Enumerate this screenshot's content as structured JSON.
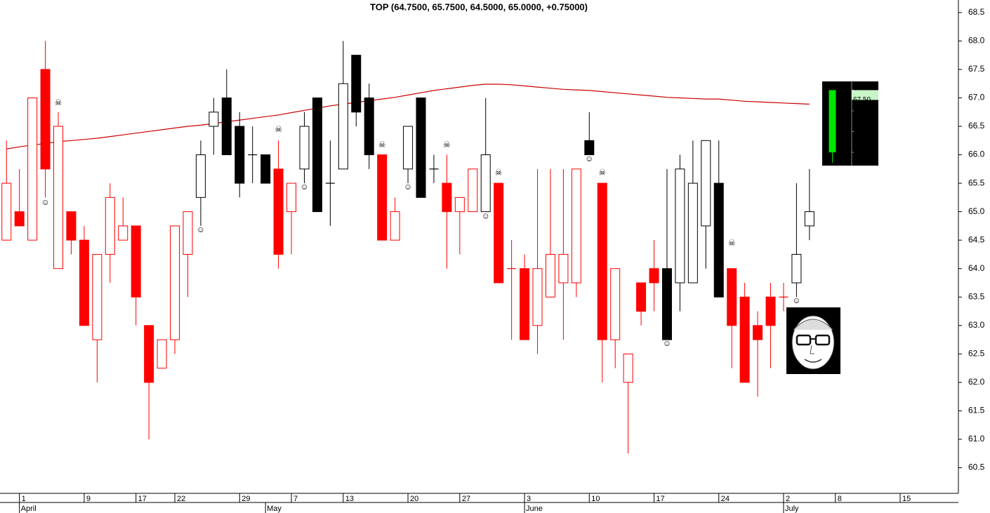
{
  "chart_data": {
    "type": "candlestick",
    "title": "TOP (64.7500, 65.7500, 64.5000, 65.0000, +0.75000)",
    "open": [
      64.5,
      65.0,
      64.5,
      67.5,
      64.0,
      65.0,
      64.5,
      62.75,
      64.25,
      64.5,
      64.75,
      63.0,
      62.25,
      62.75,
      64.25,
      65.25,
      66.5,
      67.0,
      66.5,
      66.0,
      66.0,
      65.75,
      65.0,
      65.75,
      67.0,
      65.5,
      65.75,
      67.75,
      67.0,
      66.0,
      64.5,
      65.75,
      67.0,
      65.75,
      65.5,
      65.0,
      65.0,
      65.0,
      65.5,
      64.0,
      64.0,
      63.0,
      63.5,
      63.75,
      63.75,
      66.25,
      65.5,
      62.75,
      62.0,
      63.75,
      64.0,
      64.0,
      63.75,
      63.75,
      64.75,
      65.5,
      64.0,
      63.5,
      63.0,
      63.5,
      63.5,
      63.75,
      64.75
    ],
    "high": [
      66.25,
      65.75,
      67.0,
      68.0,
      66.75,
      65.0,
      64.75,
      64.25,
      65.5,
      65.25,
      64.75,
      63.0,
      62.75,
      64.75,
      65.0,
      66.25,
      67.0,
      67.5,
      66.75,
      66.5,
      66.0,
      66.25,
      65.5,
      66.75,
      67.0,
      66.25,
      68.0,
      67.75,
      67.25,
      66.0,
      65.25,
      66.5,
      67.0,
      66.0,
      66.0,
      65.25,
      65.75,
      67.0,
      65.5,
      64.5,
      64.25,
      65.75,
      65.75,
      65.75,
      65.75,
      66.75,
      65.5,
      64.0,
      62.5,
      63.75,
      64.5,
      65.75,
      66.0,
      66.25,
      66.25,
      66.25,
      64.0,
      63.75,
      63.25,
      63.75,
      63.75,
      65.5,
      65.75
    ],
    "low": [
      64.5,
      64.75,
      64.5,
      65.25,
      64.0,
      64.25,
      63.0,
      62.0,
      63.75,
      64.5,
      63.0,
      61.0,
      62.25,
      62.5,
      63.5,
      64.75,
      66.0,
      66.0,
      65.25,
      65.5,
      65.5,
      64.0,
      64.25,
      65.5,
      65.0,
      64.75,
      65.75,
      66.5,
      65.75,
      64.5,
      64.5,
      65.5,
      65.25,
      65.5,
      64.0,
      64.25,
      65.0,
      65.0,
      63.75,
      62.75,
      62.75,
      62.5,
      63.5,
      62.75,
      63.5,
      66.0,
      62.0,
      62.25,
      60.75,
      63.0,
      63.25,
      62.75,
      63.25,
      63.75,
      64.0,
      63.5,
      62.25,
      62.0,
      61.75,
      62.25,
      63.25,
      63.5,
      64.5
    ],
    "close": [
      65.5,
      64.75,
      67.0,
      65.75,
      66.5,
      64.5,
      63.0,
      64.25,
      65.25,
      64.75,
      63.5,
      62.0,
      62.75,
      64.75,
      65.0,
      66.0,
      66.75,
      66.0,
      65.5,
      66.0,
      65.5,
      64.25,
      65.5,
      66.5,
      65.0,
      65.5,
      67.25,
      66.75,
      66.0,
      64.5,
      65.0,
      66.5,
      65.25,
      65.75,
      65.0,
      65.25,
      65.75,
      66.0,
      63.75,
      64.0,
      62.75,
      64.0,
      64.25,
      64.25,
      65.75,
      66.0,
      62.75,
      64.0,
      62.5,
      63.25,
      63.75,
      62.75,
      65.75,
      65.5,
      66.25,
      63.5,
      63.0,
      62.0,
      62.75,
      63.0,
      63.5,
      64.25,
      65.0
    ],
    "colors": [
      "#ff0000",
      "#ff0000",
      "#ff0000",
      "#ff0000",
      "#ff0000",
      "#ff0000",
      "#ff0000",
      "#ff0000",
      "#ff0000",
      "#ff0000",
      "#ff0000",
      "#ff0000",
      "#ff0000",
      "#ff0000",
      "#ff0000",
      "#000000",
      "#000000",
      "#000000",
      "#000000",
      "#000000",
      "#000000",
      "#ff0000",
      "#ff0000",
      "#000000",
      "#000000",
      "#000000",
      "#000000",
      "#000000",
      "#000000",
      "#ff0000",
      "#ff0000",
      "#000000",
      "#000000",
      "#000000",
      "#ff0000",
      "#ff0000",
      "#ff0000",
      "#000000",
      "#ff0000",
      "#ff0000",
      "#ff0000",
      "#ff0000",
      "#ff0000",
      "#ff0000",
      "#ff0000",
      "#000000",
      "#ff0000",
      "#ff0000",
      "#ff0000",
      "#ff0000",
      "#ff0000",
      "#000000",
      "#000000",
      "#000000",
      "#000000",
      "#000000",
      "#ff0000",
      "#ff0000",
      "#ff0000",
      "#ff0000",
      "#ff0000",
      "#000000",
      "#000000"
    ],
    "moving_average": {
      "color": "#cc0000",
      "values": [
        66.1,
        66.14,
        66.17,
        66.2,
        66.23,
        66.25,
        66.27,
        66.29,
        66.32,
        66.35,
        66.38,
        66.41,
        66.44,
        66.47,
        66.5,
        66.52,
        66.55,
        66.58,
        66.61,
        66.64,
        66.67,
        66.7,
        66.74,
        66.78,
        66.82,
        66.86,
        66.89,
        66.92,
        66.95,
        66.98,
        67.01,
        67.05,
        67.09,
        67.13,
        67.16,
        67.19,
        67.22,
        67.24,
        67.24,
        67.23,
        67.21,
        67.19,
        67.17,
        67.15,
        67.14,
        67.13,
        67.11,
        67.09,
        67.07,
        67.05,
        67.03,
        67.01,
        67.0,
        66.99,
        66.98,
        66.98,
        66.96,
        66.94,
        66.93,
        66.92,
        66.91,
        66.9,
        66.89
      ]
    },
    "signals": {
      "smiley": {
        "label": "☺",
        "color": "#000000",
        "points": [
          {
            "x": 3,
            "y": 65.16
          },
          {
            "x": 15,
            "y": 64.68
          },
          {
            "x": 23,
            "y": 65.43
          },
          {
            "x": 31,
            "y": 65.43
          },
          {
            "x": 37,
            "y": 64.92
          },
          {
            "x": 45,
            "y": 65.92
          },
          {
            "x": 51,
            "y": 62.68
          },
          {
            "x": 61,
            "y": 63.43
          }
        ]
      },
      "skull": {
        "label": "☠",
        "color": "#dd0000",
        "points": [
          {
            "x": 4,
            "y": 66.91
          },
          {
            "x": 21,
            "y": 66.44
          },
          {
            "x": 29,
            "y": 66.17
          },
          {
            "x": 34,
            "y": 66.17
          },
          {
            "x": 38,
            "y": 65.68
          },
          {
            "x": 46,
            "y": 65.68
          },
          {
            "x": 56,
            "y": 64.44
          }
        ]
      }
    },
    "xlim": [
      -0.5,
      73.5
    ],
    "ylim": [
      60.05,
      68.72
    ],
    "xticks": [
      {
        "value": 1,
        "label": "1"
      },
      {
        "value": 6,
        "label": "9"
      },
      {
        "value": 10,
        "label": "17"
      },
      {
        "value": 13,
        "label": "22"
      },
      {
        "value": 18,
        "label": "29"
      },
      {
        "value": 22,
        "label": "7"
      },
      {
        "value": 26,
        "label": "13"
      },
      {
        "value": 31,
        "label": "20"
      },
      {
        "value": 35,
        "label": "27"
      },
      {
        "value": 40,
        "label": "3"
      },
      {
        "value": 45,
        "label": "10"
      },
      {
        "value": 50,
        "label": "17"
      },
      {
        "value": 55,
        "label": "24"
      },
      {
        "value": 60,
        "label": "2"
      },
      {
        "value": 64,
        "label": "8"
      },
      {
        "value": 69,
        "label": "15"
      }
    ],
    "month_ticks": [
      {
        "value": 1,
        "label": "April"
      },
      {
        "value": 20,
        "label": "May"
      },
      {
        "value": 40,
        "label": "June"
      },
      {
        "value": 60,
        "label": "July"
      }
    ],
    "yticks": [
      60.5,
      {
        "value": 61,
        "label": "61.0"
      },
      61.5,
      {
        "value": 62,
        "label": "62.0"
      },
      62.5,
      {
        "value": 63,
        "label": "63.0"
      },
      63.5,
      {
        "value": 64,
        "label": "64.0"
      },
      64.5,
      {
        "value": 65,
        "label": "65.0"
      },
      65.5,
      {
        "value": 66,
        "label": "66.0"
      },
      66.5,
      {
        "value": 67,
        "label": "67.0"
      },
      67.5,
      {
        "value": 68,
        "label": "68.0"
      },
      68.5
    ],
    "inset": {
      "ylim": [
        65.68,
        67.71
      ],
      "yticks": [
        67.5,
        67,
        66.5,
        66
      ],
      "marker": {
        "value": 67.5,
        "label": "67.50"
      },
      "open": 66,
      "close": 67.5,
      "low": 65.75,
      "color": "#00e600"
    }
  }
}
